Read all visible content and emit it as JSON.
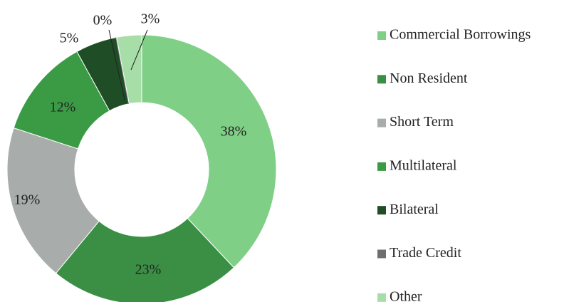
{
  "chart_data": {
    "type": "donut",
    "categories": [
      "Commercial Borrowings",
      "Non Resident",
      "Short Term",
      "Multilateral",
      "Bilateral",
      "Trade Credit",
      "Other"
    ],
    "values": [
      38,
      23,
      19,
      12,
      5,
      0,
      3
    ],
    "value_labels": [
      "38%",
      "23%",
      "19%",
      "12%",
      "5%",
      "0%",
      "3%"
    ],
    "colors": [
      "#80cf86",
      "#3b8f45",
      "#a8acab",
      "#3b9b45",
      "#1f4d26",
      "#6b6f6e",
      "#a7dea8"
    ],
    "legend": "right"
  }
}
